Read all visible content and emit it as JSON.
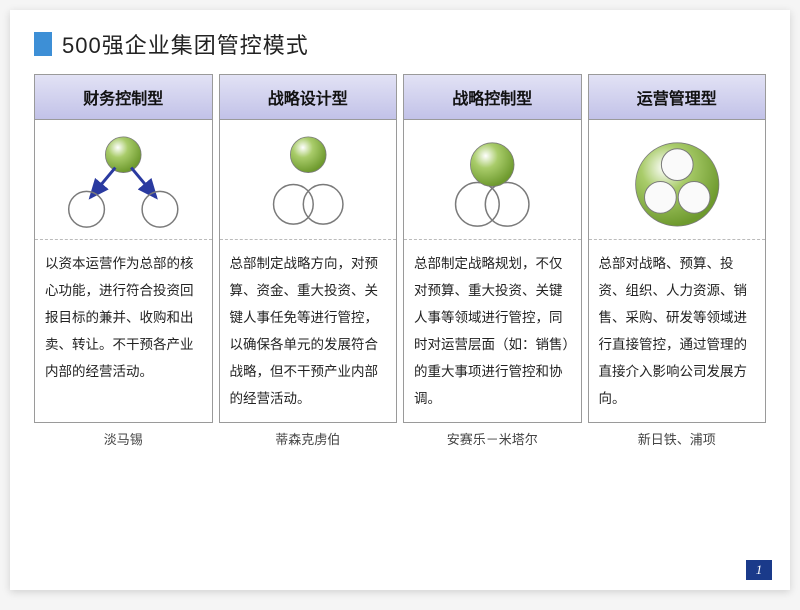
{
  "title": "500强企业集团管控模式",
  "title_block_color": "#3d8fd6",
  "header_bg": "#d0d0f0",
  "header_gradient_top": "#e2e2f5",
  "header_gradient_bottom": "#c2c2e8",
  "page_number": "1",
  "sphere_green": "#a9cc6a",
  "sphere_green_dark": "#6e9a2e",
  "sphere_outline": "#7a7a7a",
  "arrow_blue": "#2a3aa0",
  "columns": [
    {
      "header": "财务控制型",
      "body": "以资本运营作为总部的核心功能，进行符合投资回报目标的兼并、收购和出卖、转让。不干预各产业内部的经营活动。",
      "footer": "淡马锡",
      "diagram": "type1"
    },
    {
      "header": "战略设计型",
      "body": "总部制定战略方向，对预算、资金、重大投资、关键人事任免等进行管控，以确保各单元的发展符合战略，但不干预产业内部的经营活动。",
      "footer": "蒂森克虏伯",
      "diagram": "type2"
    },
    {
      "header": "战略控制型",
      "body": "总部制定战略规划，不仅对预算、重大投资、关键人事等领域进行管控，同时对运营层面（如：销售）的重大事项进行管控和协调。",
      "footer": "安赛乐－米塔尔",
      "diagram": "type3"
    },
    {
      "header": "运营管理型",
      "body": "总部对战略、预算、投资、组织、人力资源、销售、采购、研发等领域进行直接管控，通过管理的直接介入影响公司发展方向。",
      "footer": "新日铁、浦项",
      "diagram": "type4"
    }
  ]
}
